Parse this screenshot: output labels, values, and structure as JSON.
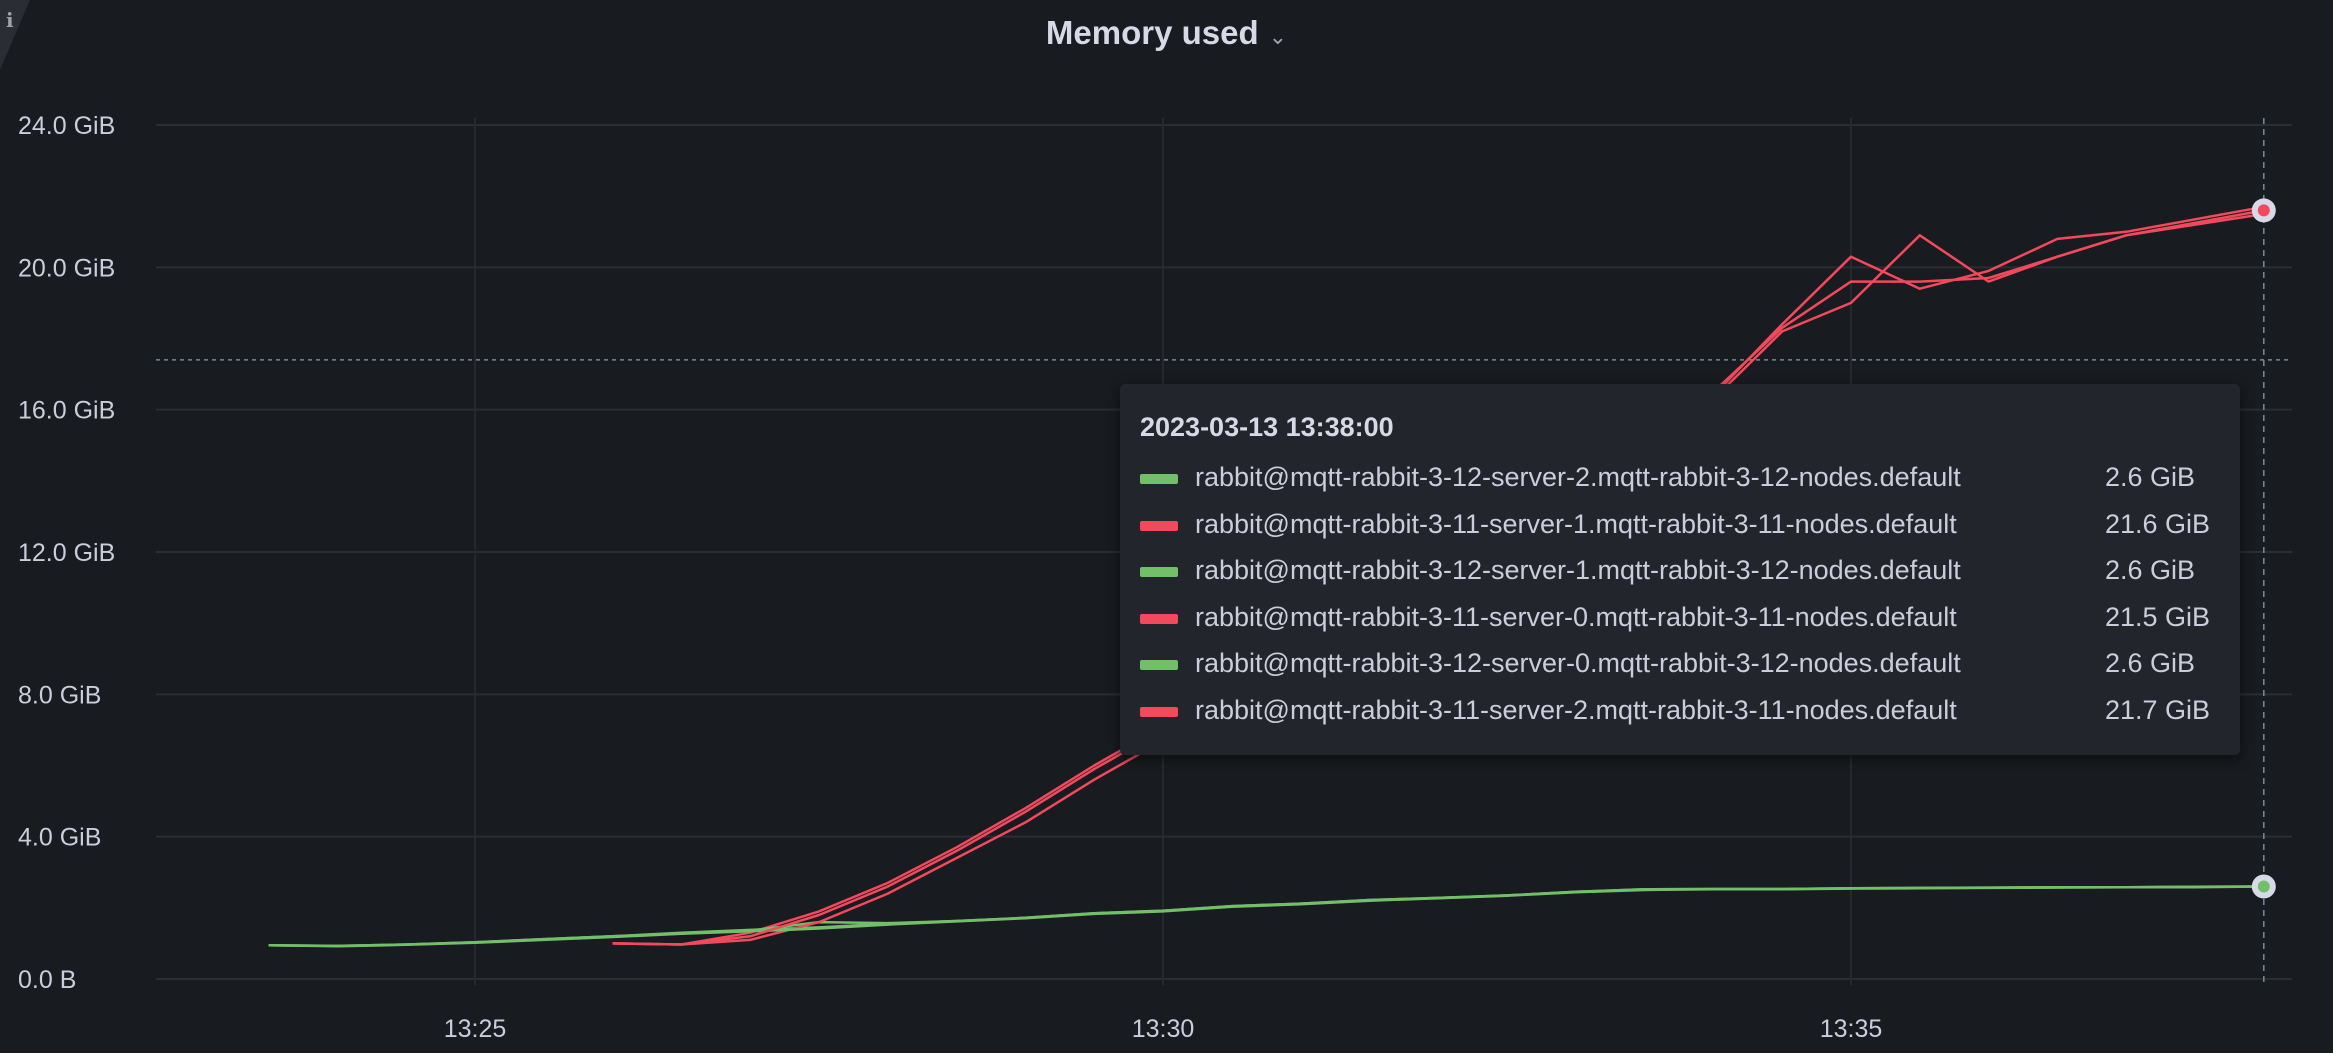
{
  "panel": {
    "title": "Memory used",
    "info_icon": "info-icon",
    "menu_icon": "chevron-down-icon"
  },
  "chart_data": {
    "type": "line",
    "title": "Memory used",
    "xlabel": "",
    "ylabel": "",
    "x_ticks": [
      "13:25",
      "13:30",
      "13:35"
    ],
    "y_ticks": [
      {
        "value": 0,
        "label": "0.0 B"
      },
      {
        "value": 4,
        "label": "4.0 GiB"
      },
      {
        "value": 8,
        "label": "8.0 GiB"
      },
      {
        "value": 12,
        "label": "12.0 GiB"
      },
      {
        "value": 16,
        "label": "16.0 GiB"
      },
      {
        "value": 20,
        "label": "20.0 GiB"
      },
      {
        "value": 24,
        "label": "24.0 GiB"
      }
    ],
    "y_unit": "GiB",
    "ylim": [
      0,
      24
    ],
    "xlim": [
      "13:22:50",
      "13:38:20"
    ],
    "grid": true,
    "colors": {
      "green": "#73bf69",
      "red": "#f2495c",
      "background": "#181b1f",
      "grid": "#2a2d32"
    },
    "crosshair": {
      "time": "13:38:00",
      "value": 17.4
    },
    "series": [
      {
        "name": "rabbit@mqtt-rabbit-3-12-server-2.mqtt-rabbit-3-12-nodes.default",
        "color": "#73bf69",
        "x": [
          "13:23:30",
          "13:24:00",
          "13:24:30",
          "13:25:00",
          "13:25:30",
          "13:26:00",
          "13:26:30",
          "13:27:00",
          "13:27:30",
          "13:28:00",
          "13:28:30",
          "13:29:00",
          "13:29:30",
          "13:30:00",
          "13:30:30",
          "13:31:00",
          "13:31:30",
          "13:32:00",
          "13:32:30",
          "13:33:00",
          "13:33:30",
          "13:34:00",
          "13:34:30",
          "13:35:00",
          "13:35:30",
          "13:36:00",
          "13:36:30",
          "13:37:00",
          "13:37:30",
          "13:38:00"
        ],
        "y": [
          0.95,
          0.93,
          0.97,
          1.03,
          1.12,
          1.2,
          1.3,
          1.38,
          1.45,
          1.55,
          1.63,
          1.72,
          1.85,
          1.92,
          2.05,
          2.12,
          2.22,
          2.28,
          2.35,
          2.45,
          2.52,
          2.53,
          2.53,
          2.55,
          2.56,
          2.57,
          2.58,
          2.58,
          2.59,
          2.6
        ]
      },
      {
        "name": "rabbit@mqtt-rabbit-3-11-server-1.mqtt-rabbit-3-11-nodes.default",
        "color": "#f2495c",
        "x": [
          "13:26:00",
          "13:26:30",
          "13:27:00",
          "13:27:30",
          "13:28:00",
          "13:28:30",
          "13:29:00",
          "13:29:30",
          "13:30:00",
          "13:30:30",
          "13:31:00",
          "13:31:30",
          "13:32:00",
          "13:32:30",
          "13:33:00",
          "13:33:30",
          "13:34:00",
          "13:34:30",
          "13:35:00",
          "13:35:30",
          "13:36:00",
          "13:36:30",
          "13:37:00",
          "13:38:00"
        ],
        "y": [
          1.0,
          0.97,
          1.3,
          1.9,
          2.7,
          3.7,
          4.8,
          6.0,
          7.1,
          8.3,
          9.5,
          10.7,
          11.9,
          13.1,
          14.2,
          15.3,
          16.5,
          18.3,
          19.6,
          19.6,
          19.7,
          20.3,
          20.9,
          21.6
        ]
      },
      {
        "name": "rabbit@mqtt-rabbit-3-12-server-1.mqtt-rabbit-3-12-nodes.default",
        "color": "#73bf69",
        "x": [
          "13:23:30",
          "13:24:00",
          "13:24:30",
          "13:25:00",
          "13:25:30",
          "13:26:00",
          "13:26:30",
          "13:27:00",
          "13:27:30",
          "13:28:00",
          "13:28:30",
          "13:29:00",
          "13:29:30",
          "13:30:00",
          "13:30:30",
          "13:31:00",
          "13:31:30",
          "13:32:00",
          "13:32:30",
          "13:33:00",
          "13:33:30",
          "13:34:00",
          "13:34:30",
          "13:35:00",
          "13:35:30",
          "13:36:00",
          "13:36:30",
          "13:37:00",
          "13:37:30",
          "13:38:00"
        ],
        "y": [
          0.95,
          0.93,
          0.97,
          1.03,
          1.12,
          1.2,
          1.28,
          1.36,
          1.6,
          1.57,
          1.63,
          1.72,
          1.85,
          1.92,
          2.05,
          2.12,
          2.22,
          2.28,
          2.35,
          2.45,
          2.52,
          2.53,
          2.53,
          2.55,
          2.56,
          2.57,
          2.58,
          2.58,
          2.59,
          2.6
        ]
      },
      {
        "name": "rabbit@mqtt-rabbit-3-11-server-0.mqtt-rabbit-3-11-nodes.default",
        "color": "#f2495c",
        "x": [
          "13:26:00",
          "13:26:30",
          "13:27:00",
          "13:27:30",
          "13:28:00",
          "13:28:30",
          "13:29:00",
          "13:29:30",
          "13:30:00",
          "13:30:30",
          "13:31:00",
          "13:31:30",
          "13:32:00",
          "13:32:30",
          "13:33:00",
          "13:33:30",
          "13:34:00",
          "13:34:30",
          "13:35:00",
          "13:35:30",
          "13:36:00",
          "13:36:30",
          "13:37:00",
          "13:38:00"
        ],
        "y": [
          1.0,
          0.97,
          1.1,
          1.6,
          2.4,
          3.4,
          4.4,
          5.6,
          6.7,
          7.9,
          9.1,
          10.3,
          11.5,
          12.7,
          13.8,
          15.0,
          16.3,
          18.2,
          19.0,
          20.9,
          19.6,
          20.3,
          20.9,
          21.5
        ]
      },
      {
        "name": "rabbit@mqtt-rabbit-3-12-server-0.mqtt-rabbit-3-12-nodes.default",
        "color": "#73bf69",
        "x": [
          "13:23:30",
          "13:24:00",
          "13:24:30",
          "13:25:00",
          "13:25:30",
          "13:26:00",
          "13:26:30",
          "13:27:00",
          "13:27:30",
          "13:28:00",
          "13:28:30",
          "13:29:00",
          "13:29:30",
          "13:30:00",
          "13:30:30",
          "13:31:00",
          "13:31:30",
          "13:32:00",
          "13:32:30",
          "13:33:00",
          "13:33:30",
          "13:34:00",
          "13:34:30",
          "13:35:00",
          "13:35:30",
          "13:36:00",
          "13:36:30",
          "13:37:00",
          "13:37:30",
          "13:38:00"
        ],
        "y": [
          0.95,
          0.92,
          0.96,
          1.02,
          1.1,
          1.18,
          1.27,
          1.34,
          1.42,
          1.53,
          1.62,
          1.71,
          1.83,
          1.9,
          2.03,
          2.1,
          2.2,
          2.27,
          2.34,
          2.44,
          2.5,
          2.52,
          2.52,
          2.54,
          2.55,
          2.56,
          2.57,
          2.58,
          2.58,
          2.6
        ]
      },
      {
        "name": "rabbit@mqtt-rabbit-3-11-server-2.mqtt-rabbit-3-11-nodes.default",
        "color": "#f2495c",
        "x": [
          "13:26:00",
          "13:26:30",
          "13:27:00",
          "13:27:30",
          "13:28:00",
          "13:28:30",
          "13:29:00",
          "13:29:30",
          "13:30:00",
          "13:30:30",
          "13:31:00",
          "13:31:30",
          "13:32:00",
          "13:32:30",
          "13:33:00",
          "13:33:30",
          "13:34:00",
          "13:34:30",
          "13:35:00",
          "13:35:30",
          "13:36:00",
          "13:36:30",
          "13:37:00",
          "13:38:00"
        ],
        "y": [
          1.0,
          0.97,
          1.2,
          1.8,
          2.6,
          3.6,
          4.7,
          5.9,
          7.0,
          8.2,
          9.4,
          10.6,
          11.8,
          13.0,
          14.1,
          15.2,
          16.4,
          18.4,
          20.3,
          19.4,
          19.9,
          20.8,
          21.0,
          21.7
        ]
      }
    ]
  },
  "tooltip": {
    "time": "2023-03-13 13:38:00",
    "rows": [
      {
        "name": "rabbit@mqtt-rabbit-3-12-server-2.mqtt-rabbit-3-12-nodes.default",
        "value": "2.6 GiB",
        "color": "#73bf69"
      },
      {
        "name": "rabbit@mqtt-rabbit-3-11-server-1.mqtt-rabbit-3-11-nodes.default",
        "value": "21.6 GiB",
        "color": "#f2495c"
      },
      {
        "name": "rabbit@mqtt-rabbit-3-12-server-1.mqtt-rabbit-3-12-nodes.default",
        "value": "2.6 GiB",
        "color": "#73bf69"
      },
      {
        "name": "rabbit@mqtt-rabbit-3-11-server-0.mqtt-rabbit-3-11-nodes.default",
        "value": "21.5 GiB",
        "color": "#f2495c"
      },
      {
        "name": "rabbit@mqtt-rabbit-3-12-server-0.mqtt-rabbit-3-12-nodes.default",
        "value": "2.6 GiB",
        "color": "#73bf69"
      },
      {
        "name": "rabbit@mqtt-rabbit-3-11-server-2.mqtt-rabbit-3-11-nodes.default",
        "value": "21.7 GiB",
        "color": "#f2495c"
      }
    ]
  }
}
